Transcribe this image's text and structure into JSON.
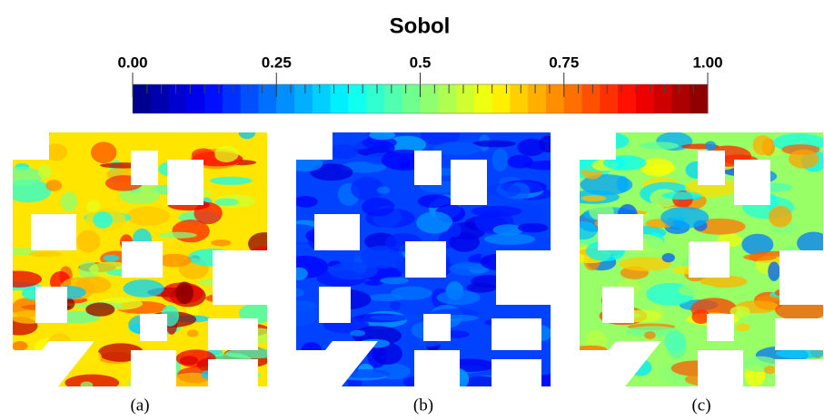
{
  "chart_data": {
    "type": "colorbar",
    "title": "Sobol",
    "clim": [
      0,
      1
    ],
    "ticks": [
      {
        "value": 0,
        "label": "0.00"
      },
      0.25,
      0.5,
      0.75,
      {
        "value": 1,
        "label": "1.00"
      }
    ],
    "panels": [
      "(a)",
      "(b)",
      "(c)"
    ]
  }
}
